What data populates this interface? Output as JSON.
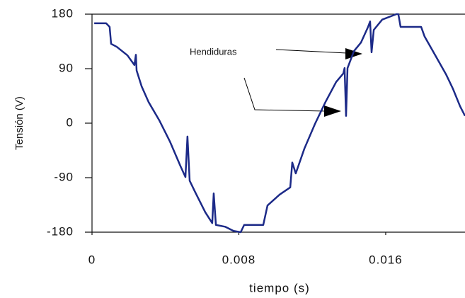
{
  "chart_data": {
    "type": "line",
    "xlabel": "tiempo (s)",
    "ylabel": "Tensión (V)",
    "annotation": "Hendiduras",
    "xlim": [
      0,
      0.02032
    ],
    "ylim": [
      -180,
      180
    ],
    "xticks": [
      0,
      0.008,
      0.016
    ],
    "yticks": [
      180,
      90,
      0,
      -90,
      -180
    ],
    "series": [
      {
        "color": "#1c2a88",
        "x": [
          0.00012,
          0.00077,
          0.00096,
          0.00104,
          0.00135,
          0.00193,
          0.00231,
          0.00239,
          0.00243,
          0.0027,
          0.00308,
          0.00366,
          0.00424,
          0.00482,
          0.00509,
          0.0052,
          0.00532,
          0.00559,
          0.00617,
          0.00655,
          0.00663,
          0.00675,
          0.00725,
          0.00771,
          0.0081,
          0.00829,
          0.00933,
          0.00956,
          0.01022,
          0.0108,
          0.01091,
          0.0111,
          0.01157,
          0.01215,
          0.01272,
          0.0133,
          0.01369,
          0.01376,
          0.01384,
          0.01392,
          0.01427,
          0.01465,
          0.01504,
          0.01515,
          0.01523,
          0.01535,
          0.01581,
          0.01658,
          0.01669,
          0.01681,
          0.01793,
          0.01812,
          0.0187,
          0.01928,
          0.01966,
          0.02005,
          0.02032
        ],
        "values": [
          165,
          165,
          159,
          131,
          126,
          112,
          96,
          113,
          87,
          61,
          35,
          5,
          -30,
          -71,
          -89,
          -22,
          -95,
          -112,
          -147,
          -165,
          -116,
          -168,
          -171,
          -178,
          -180,
          -168,
          -168,
          -136,
          -118,
          -106,
          -65,
          -83,
          -42,
          -1,
          35,
          68,
          82,
          91,
          12,
          91,
          119,
          133,
          159,
          168,
          117,
          154,
          171,
          180,
          180,
          159,
          159,
          143,
          112,
          81,
          57,
          28,
          12
        ]
      }
    ]
  }
}
